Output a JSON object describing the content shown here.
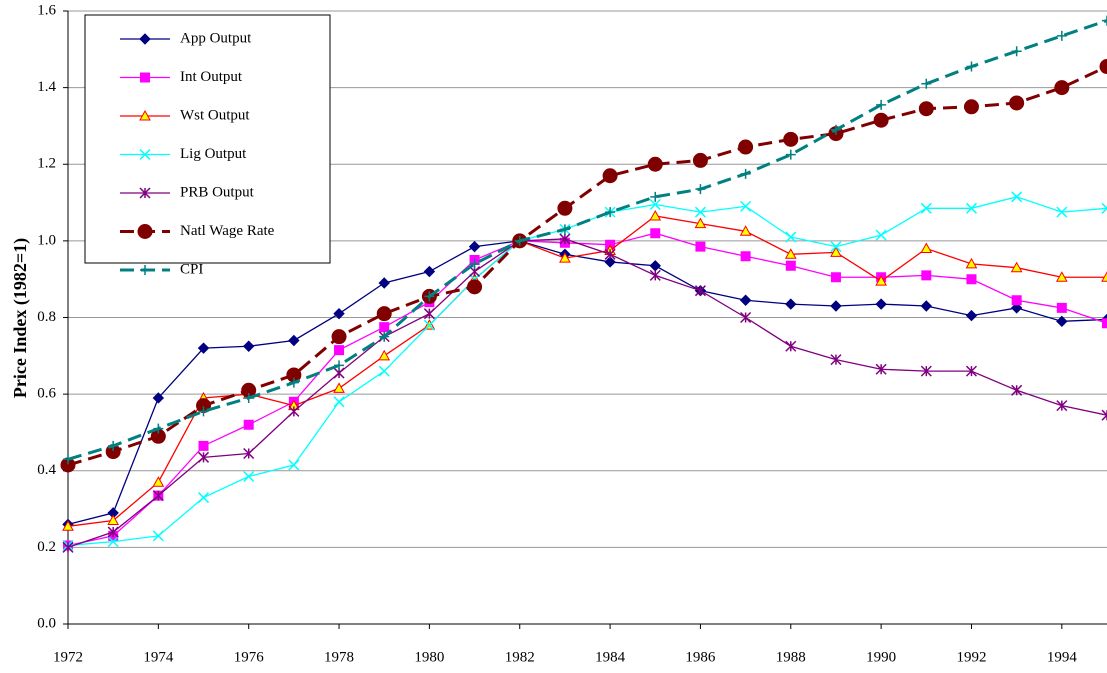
{
  "chart_data": {
    "type": "line",
    "y_label": "Price Index (1982=1)",
    "x": [
      1972,
      1973,
      1974,
      1975,
      1976,
      1977,
      1978,
      1979,
      1980,
      1981,
      1982,
      1983,
      1984,
      1985,
      1986,
      1987,
      1988,
      1989,
      1990,
      1991,
      1992,
      1993,
      1994,
      1995
    ],
    "xlim": [
      1972,
      1995
    ],
    "xticks": [
      1972,
      1974,
      1976,
      1978,
      1980,
      1982,
      1984,
      1986,
      1988,
      1990,
      1992,
      1994
    ],
    "ylim": [
      0,
      1.6
    ],
    "yticks": [
      {
        "value": 0,
        "label": "0.0"
      },
      0.2,
      0.4,
      0.6,
      0.8,
      {
        "value": 1,
        "label": "1.0"
      },
      1.2,
      1.4,
      1.6
    ],
    "grid": true,
    "legend": "upper left",
    "series": [
      {
        "name": "App Output",
        "color": "#000080",
        "marker": "diamond",
        "values": [
          0.26,
          0.29,
          0.59,
          0.72,
          0.725,
          0.74,
          0.81,
          0.89,
          0.92,
          0.985,
          1.0,
          0.965,
          0.945,
          0.935,
          0.87,
          0.845,
          0.835,
          0.83,
          0.835,
          0.83,
          0.805,
          0.825,
          0.79,
          0.795
        ]
      },
      {
        "name": "Int Output",
        "color": "#ff00ff",
        "marker": "square",
        "values": [
          0.205,
          0.23,
          0.335,
          0.465,
          0.52,
          0.58,
          0.715,
          0.775,
          0.84,
          0.95,
          1.0,
          0.995,
          0.99,
          1.02,
          0.985,
          0.96,
          0.935,
          0.905,
          0.905,
          0.91,
          0.9,
          0.845,
          0.825,
          0.785
        ]
      },
      {
        "name": "Wst Output",
        "color": "#ff0000",
        "marker": "triangle",
        "marker_fill": "#ffff00",
        "values": [
          0.255,
          0.27,
          0.37,
          0.59,
          0.6,
          0.57,
          0.615,
          0.7,
          0.78,
          0.9,
          1.0,
          0.955,
          0.975,
          1.065,
          1.045,
          1.025,
          0.965,
          0.97,
          0.895,
          0.98,
          0.94,
          0.93,
          0.905,
          0.905
        ]
      },
      {
        "name": "Lig Output",
        "color": "#00ffff",
        "marker": "x",
        "values": [
          0.205,
          0.215,
          0.23,
          0.33,
          0.385,
          0.415,
          0.58,
          0.66,
          0.78,
          0.9,
          1.0,
          1.03,
          1.075,
          1.095,
          1.075,
          1.09,
          1.01,
          0.985,
          1.015,
          1.085,
          1.085,
          1.115,
          1.075,
          1.085
        ]
      },
      {
        "name": "PRB Output",
        "color": "#800080",
        "marker": "star",
        "values": [
          0.2,
          0.24,
          0.335,
          0.435,
          0.445,
          0.555,
          0.655,
          0.75,
          0.81,
          0.92,
          1.0,
          1.005,
          0.965,
          0.91,
          0.87,
          0.8,
          0.725,
          0.69,
          0.665,
          0.66,
          0.66,
          0.61,
          0.57,
          0.545
        ]
      },
      {
        "name": "Natl Wage Rate",
        "color": "#800000",
        "marker": "circle",
        "dashed": true,
        "values": [
          0.415,
          0.45,
          0.49,
          0.57,
          0.61,
          0.65,
          0.75,
          0.81,
          0.855,
          0.88,
          1.0,
          1.085,
          1.17,
          1.2,
          1.21,
          1.245,
          1.265,
          1.28,
          1.315,
          1.345,
          1.35,
          1.36,
          1.4,
          1.455
        ]
      },
      {
        "name": "CPI",
        "color": "#008080",
        "marker": "plus",
        "dashed": true,
        "values": [
          0.43,
          0.465,
          0.51,
          0.555,
          0.59,
          0.63,
          0.675,
          0.75,
          0.855,
          0.94,
          1.0,
          1.03,
          1.075,
          1.115,
          1.135,
          1.175,
          1.225,
          1.29,
          1.355,
          1.41,
          1.455,
          1.495,
          1.535,
          1.575
        ]
      }
    ]
  }
}
